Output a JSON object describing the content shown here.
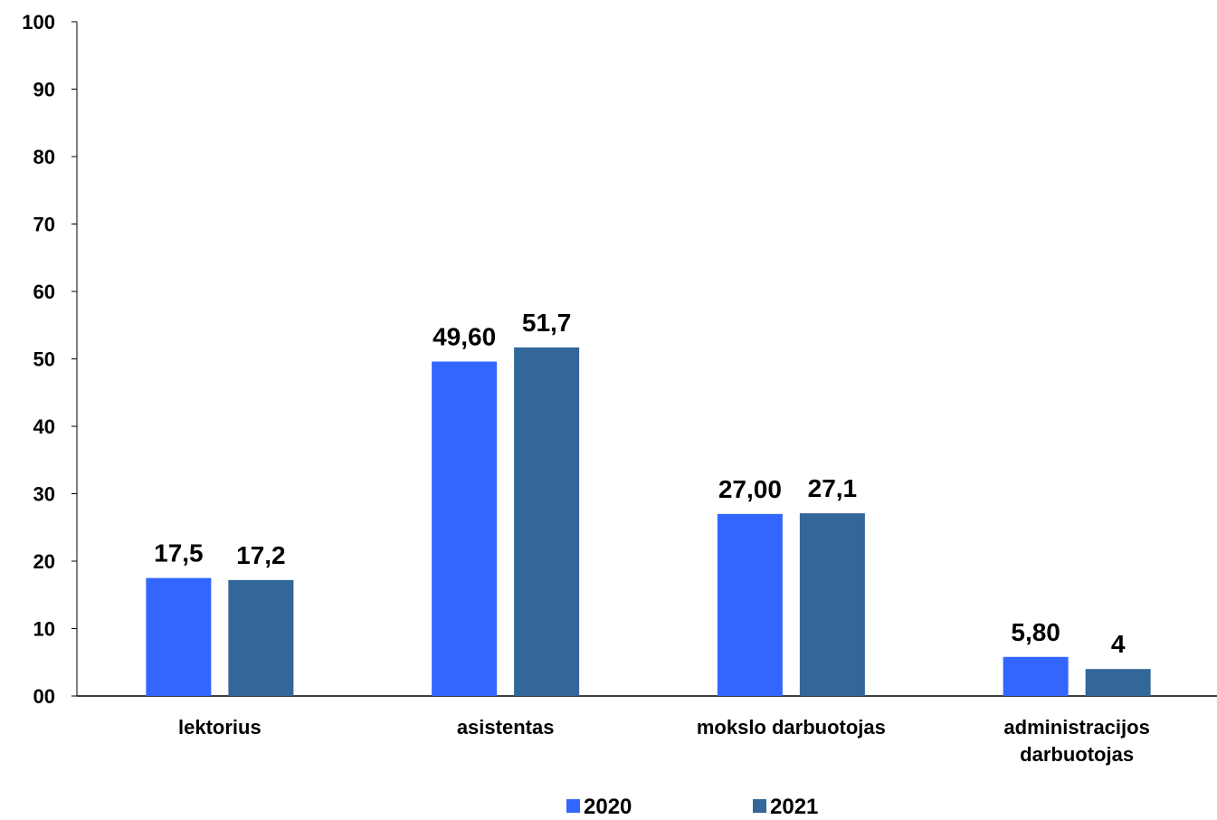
{
  "chart_data": {
    "type": "bar",
    "title": "",
    "xlabel": "",
    "ylabel": "",
    "categories": [
      [
        "lektorius"
      ],
      [
        "asistentas"
      ],
      [
        "mokslo darbuotojas"
      ],
      [
        "administracijos",
        "darbuotojas"
      ]
    ],
    "series": [
      {
        "name": "2020",
        "color": "#3366FF",
        "values": [
          17.5,
          49.6,
          27.0,
          5.8
        ],
        "labels": [
          "17,5",
          "49,60",
          "27,00",
          "5,80"
        ]
      },
      {
        "name": "2021",
        "color": "#336699",
        "values": [
          17.2,
          51.7,
          27.1,
          4
        ],
        "labels": [
          "17,2",
          "51,7",
          "27,1",
          "4"
        ]
      }
    ],
    "ylim": [
      0,
      100
    ],
    "yticks": [
      0,
      10,
      20,
      30,
      40,
      50,
      60,
      70,
      80,
      90,
      100
    ],
    "ytick_labels": [
      "00",
      "10",
      "20",
      "30",
      "40",
      "50",
      "60",
      "70",
      "80",
      "90",
      "100"
    ],
    "grid": false,
    "legend_position": "bottom"
  }
}
